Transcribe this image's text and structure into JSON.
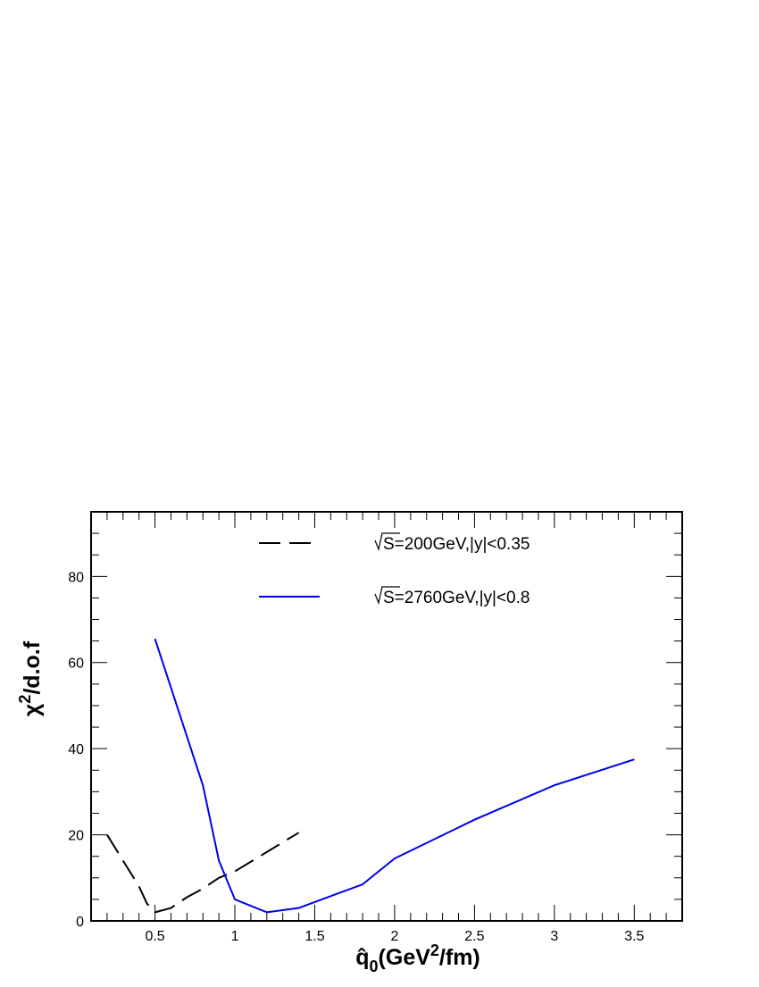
{
  "chart_data": {
    "type": "line",
    "xlabel": {
      "main": "q̂",
      "sub": "0",
      "pre": "(GeV",
      "sup": "2",
      "post": "/fm)"
    },
    "ylabel": {
      "main": "χ",
      "sup": "2",
      "post": "/d.o.f"
    },
    "xlim": [
      0.1,
      3.8
    ],
    "ylim": [
      0,
      95
    ],
    "xticks": [
      0.5,
      1,
      1.5,
      2,
      2.5,
      3,
      3.5
    ],
    "xtick_labels": [
      "0.5",
      "1",
      "1.5",
      "2",
      "2.5",
      "3",
      "3.5"
    ],
    "yticks": [
      0,
      20,
      40,
      60,
      80
    ],
    "ytick_labels": [
      "0",
      "20",
      "40",
      "60",
      "80"
    ],
    "grid": false,
    "legend_position": "top",
    "series": [
      {
        "name": "S=200GeV,|y|<0.35",
        "color": "#000000",
        "dashed": true,
        "x": [
          0.2,
          0.3,
          0.4,
          0.45,
          0.5,
          0.6,
          0.7,
          0.8,
          0.9,
          1.0,
          1.2,
          1.4
        ],
        "y": [
          20,
          14,
          8,
          4,
          2,
          3,
          5.5,
          7.5,
          10,
          11.5,
          16,
          20.5
        ]
      },
      {
        "name": "S=2760GeV,|y|<0.8",
        "color": "#0000ee",
        "dashed": false,
        "x": [
          0.5,
          0.8,
          0.9,
          1.0,
          1.2,
          1.4,
          1.8,
          2.0,
          2.5,
          3.0,
          3.5
        ],
        "y": [
          65.5,
          31.5,
          14,
          5,
          2,
          3,
          8.5,
          14.5,
          23.5,
          31.5,
          37.5
        ]
      }
    ]
  }
}
